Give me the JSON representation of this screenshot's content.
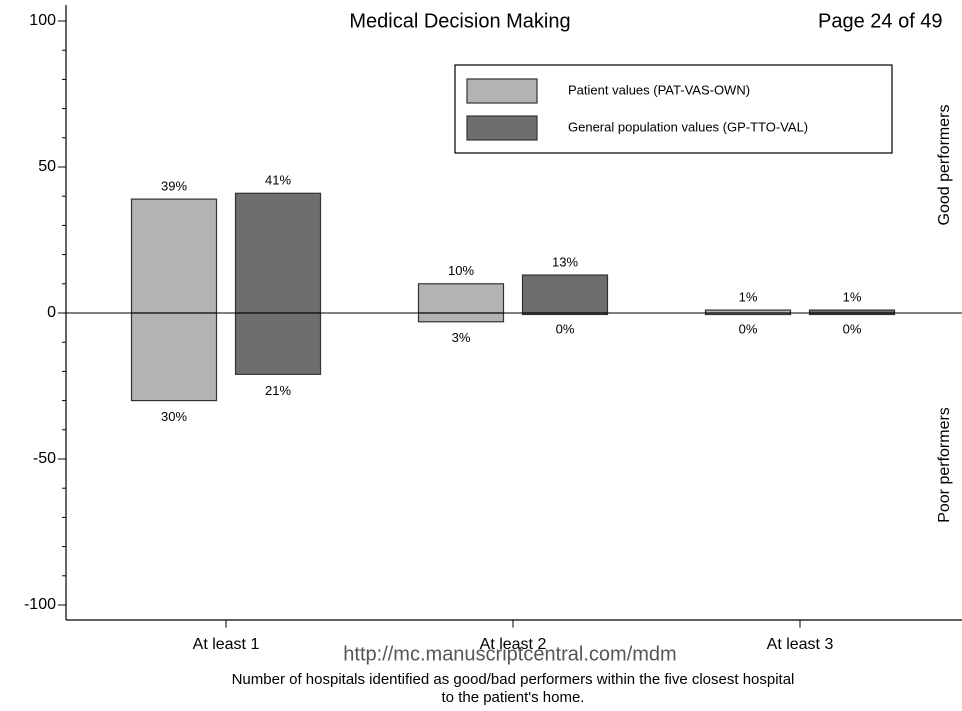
{
  "header": {
    "journal": "Medical Decision Making",
    "page": "Page 24 of 49"
  },
  "watermark": "http://mc.manuscriptcentral.com/mdm",
  "chart_data": {
    "type": "bar",
    "categories": [
      "At least 1",
      "At least 2",
      "At least 3"
    ],
    "series": [
      {
        "name": "Patient values (PAT-VAS-OWN)",
        "color": "#b3b3b3",
        "values": [
          39,
          10,
          1
        ],
        "value_labels": [
          "39%",
          "10%",
          "1%"
        ],
        "poor_values": [
          -30,
          -3,
          0
        ],
        "poor_value_labels": [
          "30%",
          "3%",
          "0%"
        ]
      },
      {
        "name": "General population values (GP-TTO-VAL)",
        "color": "#6e6e6e",
        "values": [
          41,
          13,
          1
        ],
        "value_labels": [
          "41%",
          "13%",
          "1%"
        ],
        "poor_values": [
          -21,
          0,
          0
        ],
        "poor_value_labels": [
          "21%",
          "0%",
          "0%"
        ]
      }
    ],
    "ylim": [
      -105,
      105
    ],
    "yticks": [
      -100,
      -50,
      0,
      50,
      100
    ],
    "yminorticks": [
      -90,
      -80,
      -70,
      -60,
      -40,
      -30,
      -20,
      -10,
      10,
      20,
      30,
      40,
      60,
      70,
      80,
      90
    ],
    "x_label": [
      "Number of hospitals identified as good/bad performers within the five closest hospital",
      "to the patient's home."
    ],
    "side_labels": [
      "Good performers",
      "Poor performers"
    ],
    "legend": "top-right"
  }
}
